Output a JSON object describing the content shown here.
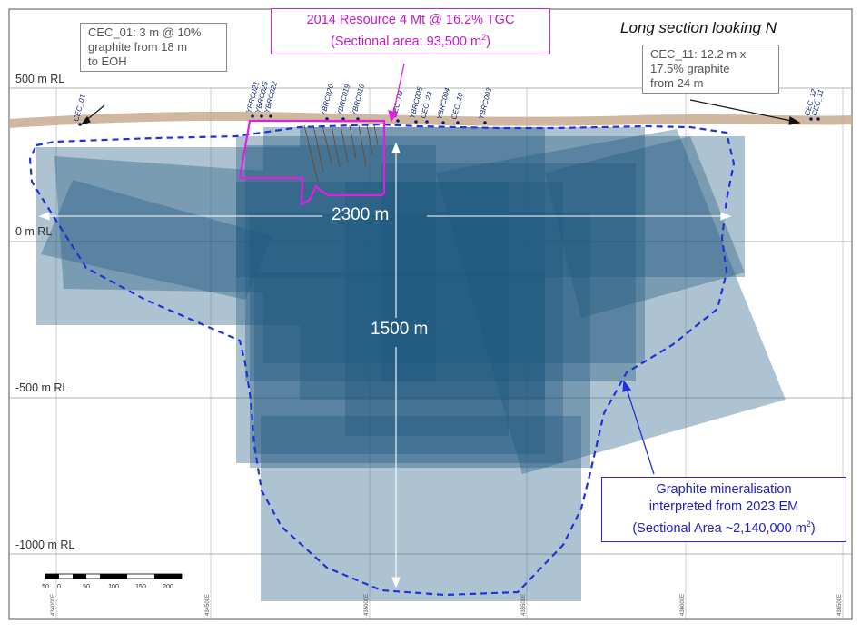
{
  "title": "Long section looking N",
  "rl_labels": [
    "500 m RL",
    "0 m RL",
    "-500 m RL",
    "-1000 m RL"
  ],
  "callouts": {
    "cec01": "CEC_01: 3 m @ 10%\ngraphite from 18 m\nto EOH",
    "cec11": "CEC_11: 12.2 m x\n17.5% graphite\nfrom 24 m",
    "resource_line1": "2014 Resource 4 Mt @ 16.2% TGC",
    "resource_line2_prefix": "(Sectional area: 93,500 m",
    "resource_line2_sup": "2",
    "resource_line2_suffix": ")",
    "mineral_line1": "Graphite mineralisation",
    "mineral_line2": "interpreted from 2023 EM",
    "mineral_line3_prefix": "(Sectional Area ~2,140,000 m",
    "mineral_line3_sup": "2",
    "mineral_line3_suffix": ")"
  },
  "dimensions": {
    "width": "2300 m",
    "height": "1500 m"
  },
  "drillholes": [
    "CEC_01",
    "YBRC021",
    "YBRC025",
    "YBRC022",
    "YBRC020",
    "YBRC019",
    "YBRC016",
    "CEC_09",
    "YBRC005",
    "CEC_23",
    "YBRC004",
    "CEC_10",
    "YBRC003",
    "CEC_12",
    "CEC_11"
  ],
  "scale_labels": [
    "50",
    "0",
    "50",
    "100",
    "150",
    "200"
  ],
  "easting_labels": [
    "434000E",
    "434500E",
    "435000E",
    "435500E",
    "436000E",
    "436500E"
  ],
  "colors": {
    "em_plate": "#1f5a7f",
    "dashed_outline": "#1f34d8",
    "resource_outline": "#e020e0",
    "topography": "#c7ab8e"
  }
}
